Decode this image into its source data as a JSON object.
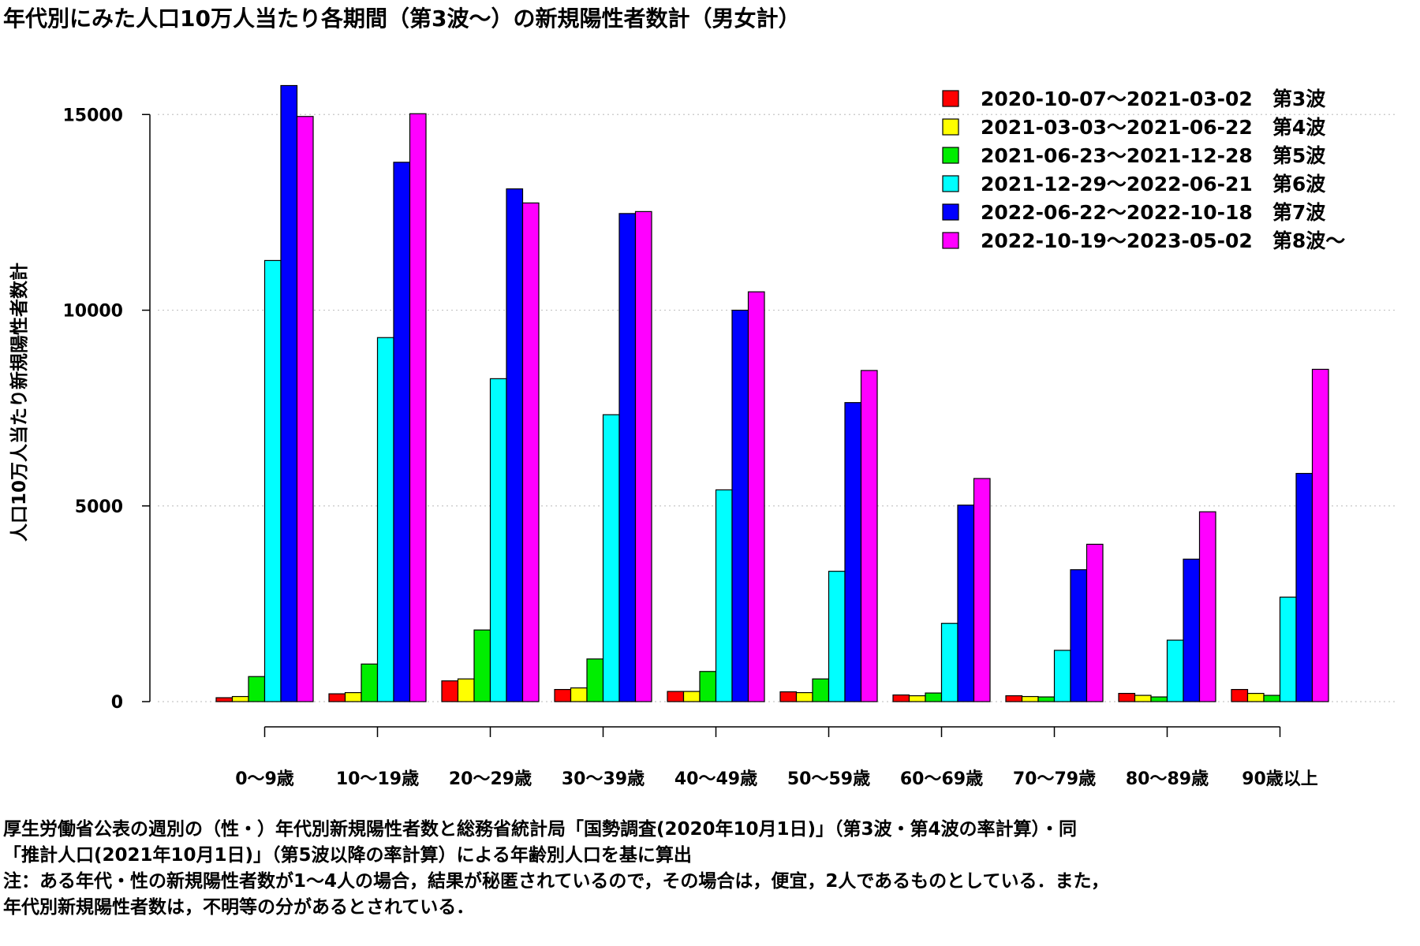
{
  "chart_data": {
    "type": "bar",
    "title": "年代別にみた人口10万人当たり各期間（第3波～）の新規陽性者数計（男女計）",
    "ylabel": "人口10万人当たり新規陽性者数計",
    "xlabel": "",
    "ylim": [
      0,
      17000
    ],
    "yticks": [
      0,
      5000,
      10000,
      15000
    ],
    "grid": "horizontal dotted",
    "legend_position": "top-right",
    "categories": [
      "0～9歳",
      "10～19歳",
      "20～29歳",
      "30～39歳",
      "40～49歳",
      "50～59歳",
      "60～69歳",
      "70～79歳",
      "80～89歳",
      "90歳以上"
    ],
    "series": [
      {
        "name": "2020-10-07～2021-03-02　第3波",
        "color": "#ff0000",
        "values": [
          100,
          200,
          530,
          310,
          260,
          250,
          170,
          150,
          210,
          310
        ]
      },
      {
        "name": "2021-03-03～2021-06-22　第4波",
        "color": "#ffff00",
        "values": [
          130,
          230,
          580,
          350,
          260,
          230,
          150,
          130,
          160,
          210
        ]
      },
      {
        "name": "2021-06-23～2021-12-28　第5波",
        "color": "#00ee00",
        "values": [
          640,
          960,
          1830,
          1090,
          770,
          580,
          220,
          120,
          120,
          160
        ]
      },
      {
        "name": "2021-12-29～2022-06-21　第6波",
        "color": "#00ffff",
        "values": [
          11270,
          9300,
          8250,
          7330,
          5410,
          3330,
          2000,
          1310,
          1570,
          2670
        ]
      },
      {
        "name": "2022-06-22～2022-10-18　第7波",
        "color": "#0000ff",
        "values": [
          15740,
          13780,
          13100,
          12470,
          10000,
          7640,
          5020,
          3370,
          3640,
          5830
        ]
      },
      {
        "name": "2022-10-19～2023-05-02　第8波～",
        "color": "#ff00ff",
        "values": [
          14950,
          15020,
          12740,
          12520,
          10470,
          8460,
          5700,
          4020,
          4850,
          8490
        ]
      }
    ]
  },
  "notes": [
    "厚生労働省公表の週別の（性・）年代別新規陽性者数と総務省統計局「国勢調査(2020年10月1日)」（第3波・第4波の率計算）・同",
    "「推計人口(2021年10月1日)」（第5波以降の率計算）による年齢別人口を基に算出",
    "注：ある年代・性の新規陽性者数が1～4人の場合，結果が秘匿されているので，その場合は，便宜，2人であるものとしている．また，",
    "年代別新規陽性者数は，不明等の分があるとされている．"
  ]
}
